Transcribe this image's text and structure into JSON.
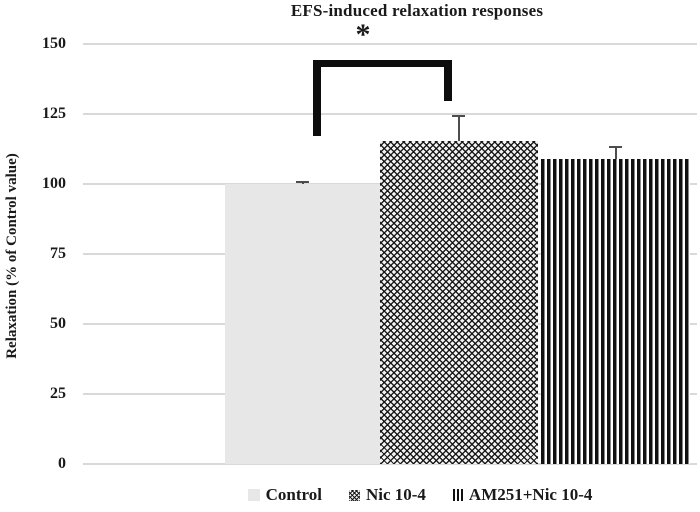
{
  "title": "EFS-induced relaxation responses",
  "y_axis": {
    "label": "Relaxation (% of Control value)",
    "ticks": [
      150,
      125,
      100,
      75,
      50,
      25,
      0
    ],
    "tick_labels": [
      "150",
      "125",
      "100",
      "75",
      "50",
      "25",
      "0"
    ]
  },
  "legend": {
    "items": [
      {
        "label": "Control",
        "swatch": "solid-light-gray"
      },
      {
        "label": "Nic 10-4",
        "swatch": "dotted-diamond-crosshatch"
      },
      {
        "label": "AM251+Nic 10-4",
        "swatch": "vertical-stripes"
      }
    ]
  },
  "significance": {
    "symbol": "*",
    "between": [
      "Control",
      "Nic 10-4"
    ]
  },
  "chart_data": {
    "type": "bar",
    "title": "EFS-induced relaxation responses",
    "xlabel": "",
    "ylabel": "Relaxation (% of Control value)",
    "ylim": [
      0,
      150
    ],
    "yticks": [
      0,
      25,
      50,
      75,
      100,
      125,
      150
    ],
    "grid": true,
    "legend_position": "bottom",
    "categories": [
      "Control",
      "Nic 10-4",
      "AM251+Nic 10-4"
    ],
    "values": [
      100,
      115.5,
      109
    ],
    "errors_plus": [
      1,
      9,
      4.5
    ],
    "bar_styles": [
      "solid-light-gray",
      "dotted-diamond-crosshatch",
      "vertical-stripes"
    ],
    "annotations": [
      {
        "type": "significance-bracket",
        "from": "Control",
        "to": "Nic 10-4",
        "symbol": "*"
      }
    ]
  },
  "colors": {
    "control_fill": "#e7e7e7",
    "pattern_ink": "#111111",
    "gridline": "#d9d9d9",
    "error_bar": "#4d4d4d",
    "bracket": "#0d0d0d",
    "text": "#1a1a1a",
    "background": "#ffffff"
  }
}
